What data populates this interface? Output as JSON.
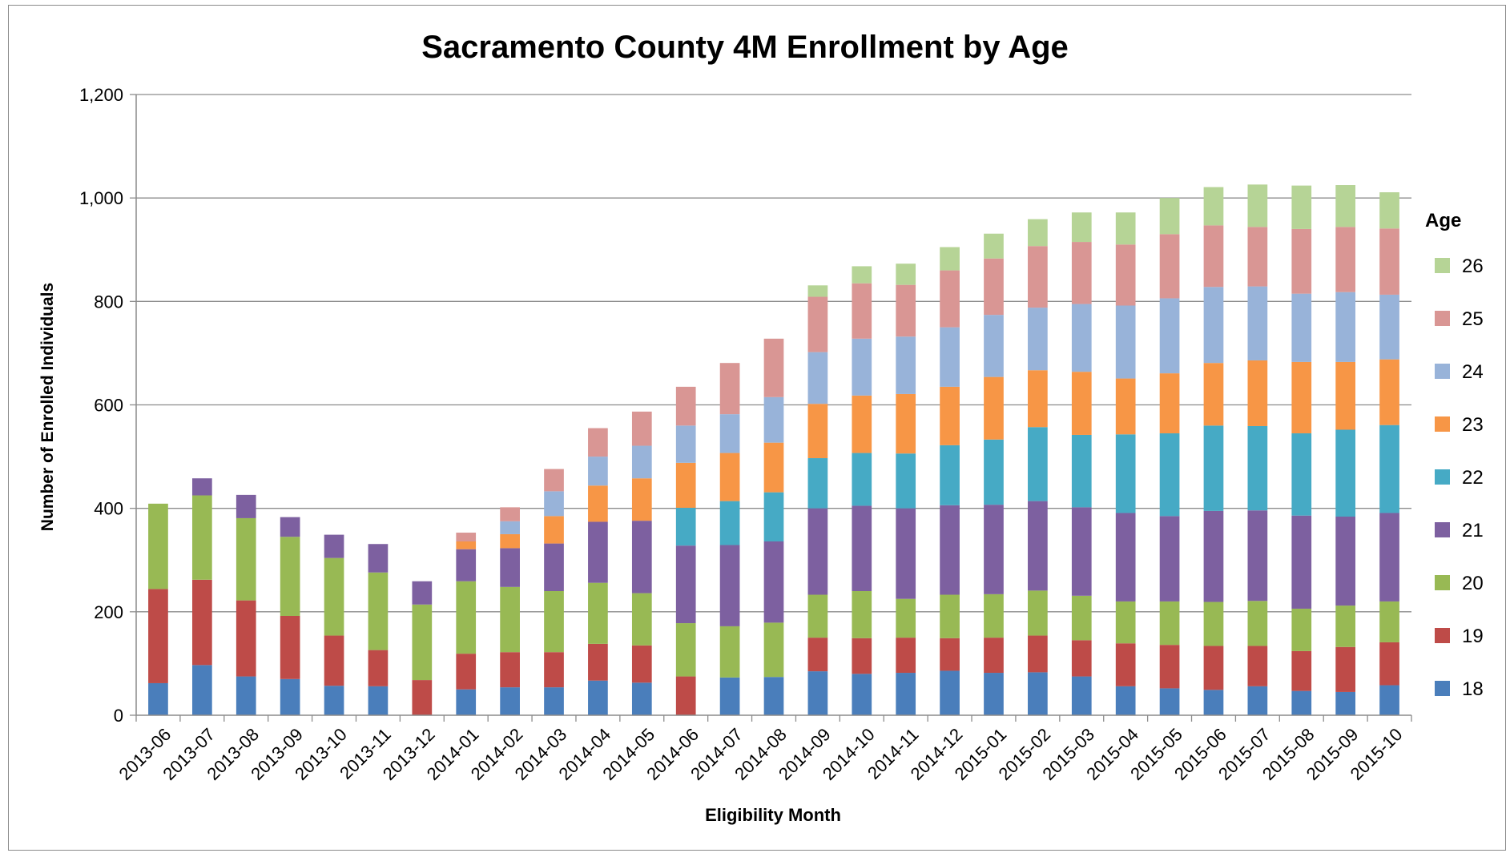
{
  "chart_data": {
    "type": "bar",
    "stacked": true,
    "title": "Sacramento County 4M Enrollment by Age",
    "xlabel": "Eligibility Month",
    "ylabel": "Number of Enrolled Individuals",
    "ylim": [
      0,
      1200
    ],
    "yticks": [
      0,
      200,
      400,
      600,
      800,
      1000,
      1200
    ],
    "ytick_labels": [
      "0",
      "200",
      "400",
      "600",
      "800",
      "1,000",
      "1,200"
    ],
    "grid": true,
    "legend_title": "Age",
    "legend_position": "right",
    "categories": [
      "2013-06",
      "2013-07",
      "2013-08",
      "2013-09",
      "2013-10",
      "2013-11",
      "2013-12",
      "2014-01",
      "2014-02",
      "2014-03",
      "2014-04",
      "2014-05",
      "2014-06",
      "2014-07",
      "2014-08",
      "2014-09",
      "2014-10",
      "2014-11",
      "2014-12",
      "2015-01",
      "2015-02",
      "2015-03",
      "2015-04",
      "2015-05",
      "2015-06",
      "2015-07",
      "2015-08",
      "2015-09",
      "2015-10"
    ],
    "series": [
      {
        "name": "18",
        "color": "#4a7ebb",
        "values": [
          62,
          97,
          75,
          70,
          57,
          56,
          0,
          50,
          54,
          54,
          67,
          63,
          0,
          73,
          74,
          85,
          80,
          82,
          86,
          82,
          83,
          75,
          56,
          52,
          49,
          56,
          47,
          45,
          58
        ]
      },
      {
        "name": "19",
        "color": "#be4b48",
        "values": [
          182,
          165,
          147,
          122,
          97,
          70,
          68,
          69,
          68,
          68,
          71,
          72,
          75,
          0,
          0,
          65,
          69,
          68,
          63,
          68,
          71,
          70,
          83,
          84,
          85,
          78,
          77,
          87,
          83
        ]
      },
      {
        "name": "20",
        "color": "#98b954",
        "values": [
          165,
          163,
          159,
          153,
          150,
          150,
          146,
          140,
          126,
          118,
          118,
          101,
          103,
          99,
          105,
          83,
          91,
          75,
          84,
          84,
          87,
          86,
          81,
          84,
          85,
          87,
          82,
          80,
          79
        ]
      },
      {
        "name": "21",
        "color": "#7d60a0",
        "values": [
          0,
          33,
          45,
          38,
          45,
          55,
          45,
          62,
          75,
          92,
          118,
          140,
          150,
          157,
          157,
          167,
          165,
          175,
          173,
          173,
          173,
          171,
          171,
          165,
          176,
          175,
          180,
          172,
          171
        ]
      },
      {
        "name": "22",
        "color": "#46aac5",
        "values": [
          0,
          0,
          0,
          0,
          0,
          0,
          0,
          0,
          0,
          0,
          0,
          0,
          73,
          85,
          95,
          97,
          102,
          106,
          116,
          126,
          143,
          140,
          152,
          160,
          165,
          163,
          159,
          168,
          170
        ]
      },
      {
        "name": "23",
        "color": "#f79646",
        "values": [
          0,
          0,
          0,
          0,
          0,
          0,
          0,
          15,
          27,
          53,
          70,
          82,
          87,
          93,
          96,
          105,
          111,
          115,
          113,
          121,
          110,
          122,
          108,
          116,
          121,
          127,
          138,
          131,
          127
        ]
      },
      {
        "name": "24",
        "color": "#98b3d9",
        "values": [
          0,
          0,
          0,
          0,
          0,
          0,
          0,
          0,
          25,
          48,
          56,
          63,
          72,
          75,
          88,
          100,
          110,
          111,
          115,
          120,
          121,
          131,
          141,
          145,
          147,
          143,
          132,
          135,
          125
        ]
      },
      {
        "name": "25",
        "color": "#d99694",
        "values": [
          0,
          0,
          0,
          0,
          0,
          0,
          0,
          17,
          27,
          43,
          55,
          66,
          75,
          99,
          113,
          107,
          107,
          100,
          110,
          109,
          119,
          120,
          118,
          124,
          119,
          115,
          125,
          126,
          128
        ]
      },
      {
        "name": "26",
        "color": "#b6d496",
        "values": [
          0,
          0,
          0,
          0,
          0,
          0,
          0,
          0,
          0,
          0,
          0,
          0,
          0,
          0,
          0,
          22,
          33,
          41,
          45,
          48,
          52,
          57,
          62,
          70,
          74,
          82,
          84,
          81,
          70
        ]
      }
    ]
  }
}
